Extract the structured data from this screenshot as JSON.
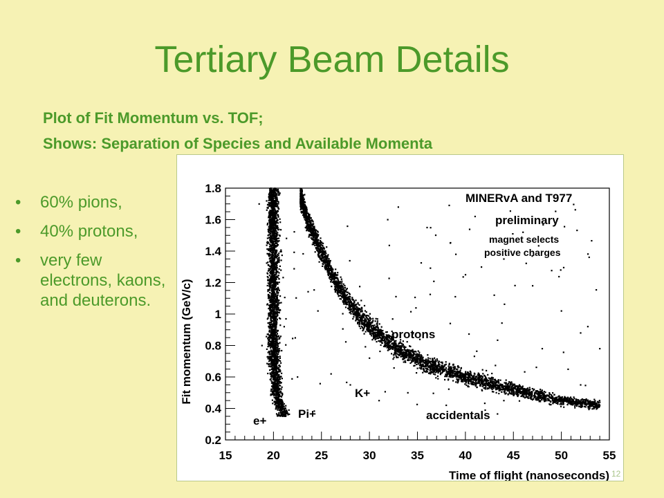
{
  "slide": {
    "title": "Tertiary Beam Details",
    "subtitle_lines": [
      "Plot of Fit Momentum vs. TOF;",
      "Shows: Separation of Species and Available Momenta"
    ],
    "bullets": [
      "60% pions,",
      "40% protons,",
      "very few electrons, kaons, and deuterons."
    ],
    "page_number": "12",
    "colors": {
      "background": "#f6f2b4",
      "accent": "#4c9a2a",
      "plot_background": "#ffffff",
      "marker": "#000000"
    }
  },
  "chart_data": {
    "type": "scatter",
    "title": "",
    "xlabel": "Time of flight (nanoseconds)",
    "ylabel": "Fit momentum (GeV/c)",
    "xlim": [
      15,
      55
    ],
    "ylim": [
      0.2,
      1.8
    ],
    "xticks": [
      15,
      20,
      25,
      30,
      35,
      40,
      45,
      50,
      55
    ],
    "xtick_labels": [
      "15",
      "20",
      "25",
      "30",
      "35",
      "40",
      "45",
      "50",
      "55"
    ],
    "yticks": [
      0.2,
      0.4,
      0.6,
      0.8,
      1,
      1.2,
      1.4,
      1.6,
      1.8
    ],
    "ytick_labels": [
      "0.2",
      "0.4",
      "0.6",
      "0.8",
      "1",
      "1.2",
      "1.4",
      "1.6",
      "1.8"
    ],
    "grid": false,
    "annotations": [
      "MINERvA and T977",
      "preliminary",
      "magnet selects",
      "positive charges",
      "protons",
      "K+",
      "e+",
      "Pi+",
      "accidentals"
    ],
    "series": [
      {
        "name": "Pi+ / e+ band",
        "points": [
          [
            20.0,
            1.75
          ],
          [
            20.0,
            1.55
          ],
          [
            20.0,
            1.35
          ],
          [
            20.0,
            1.15
          ],
          [
            20.0,
            0.95
          ],
          [
            20.0,
            0.8
          ],
          [
            20.1,
            0.65
          ],
          [
            20.3,
            0.5
          ],
          [
            20.6,
            0.42
          ],
          [
            21.0,
            0.38
          ]
        ]
      },
      {
        "name": "protons band",
        "points": [
          [
            22.8,
            1.75
          ],
          [
            23.5,
            1.6
          ],
          [
            24.8,
            1.42
          ],
          [
            26.5,
            1.2
          ],
          [
            28.5,
            1.02
          ],
          [
            30.5,
            0.9
          ],
          [
            33.0,
            0.78
          ],
          [
            36.0,
            0.68
          ],
          [
            40.0,
            0.6
          ],
          [
            45.0,
            0.52
          ],
          [
            50.0,
            0.45
          ],
          [
            54.0,
            0.42
          ]
        ]
      },
      {
        "name": "accidentals",
        "points": [
          [
            33,
            1.68
          ],
          [
            36,
            1.55
          ],
          [
            41,
            1.62
          ],
          [
            46,
            1.52
          ],
          [
            39,
            1.38
          ],
          [
            44,
            1.35
          ],
          [
            40,
            1.25
          ],
          [
            47,
            1.18
          ],
          [
            43,
            1.12
          ],
          [
            50,
            1.02
          ],
          [
            52,
            0.88
          ],
          [
            48,
            0.78
          ],
          [
            54,
            0.78
          ],
          [
            26,
            0.62
          ],
          [
            28,
            0.55
          ],
          [
            31,
            0.45
          ],
          [
            34,
            0.5
          ],
          [
            38,
            0.42
          ],
          [
            44,
            0.45
          ],
          [
            52,
            0.55
          ],
          [
            30,
            0.72
          ],
          [
            18.5,
            1.7
          ],
          [
            18.8,
            0.8
          ],
          [
            22.5,
            0.6
          ]
        ]
      }
    ]
  }
}
